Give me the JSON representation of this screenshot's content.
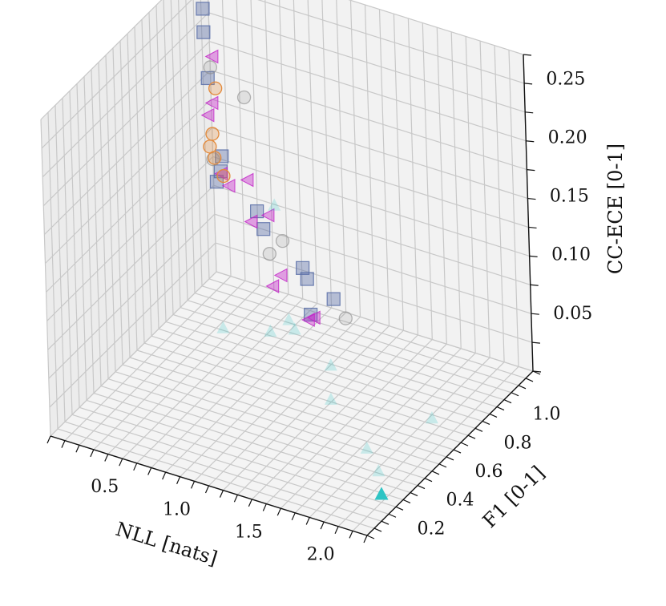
{
  "chart_data": {
    "type": "scatter",
    "projection": "3d",
    "title": "",
    "xlabel": "NLL [nats]",
    "ylabel": "F1 [0-1]",
    "zlabel": "CC-ECE [0-1]",
    "xlim": [
      0.0,
      2.2
    ],
    "ylim": [
      0.0,
      1.15
    ],
    "zlim": [
      0.0,
      0.27
    ],
    "xticks": [
      "0.5",
      "1.0",
      "1.5",
      "2.0"
    ],
    "yticks": [
      "0.2",
      "0.4",
      "0.6",
      "0.8",
      "1.0"
    ],
    "zticks": [
      "0.05",
      "0.10",
      "0.15",
      "0.20",
      "0.25"
    ],
    "grid": true,
    "legend": "none",
    "colors": {
      "slate": "#5b6fa8",
      "magenta": "#c21fc7",
      "cyan": "#2ec4c4",
      "orange": "#e38a3b",
      "gray": "#8c8c8c",
      "pane": "#f2f2f2",
      "grid": "#c8c8c8"
    },
    "series": [
      {
        "marker": "square",
        "color": "slate",
        "points": [
          [
            0.2,
            0.92,
            0.26
          ],
          [
            0.2,
            0.92,
            0.24
          ],
          [
            0.21,
            0.93,
            0.2
          ],
          [
            0.23,
            0.95,
            0.11
          ],
          [
            0.25,
            0.97,
            0.13
          ],
          [
            0.26,
            0.95,
            0.12
          ],
          [
            0.6,
            0.9,
            0.09
          ],
          [
            0.6,
            0.86,
            0.11
          ],
          [
            0.95,
            0.82,
            0.08
          ],
          [
            1.15,
            0.83,
            0.06
          ],
          [
            1.0,
            0.8,
            0.075
          ],
          [
            1.08,
            0.74,
            0.055
          ]
        ]
      },
      {
        "marker": "triangle-left",
        "color": "magenta",
        "points": [
          [
            0.25,
            0.93,
            0.22
          ],
          [
            0.24,
            0.93,
            0.18
          ],
          [
            0.22,
            0.92,
            0.17
          ],
          [
            0.28,
            0.94,
            0.12
          ],
          [
            0.32,
            0.95,
            0.11
          ],
          [
            0.45,
            0.95,
            0.12
          ],
          [
            0.62,
            0.92,
            0.1
          ],
          [
            0.5,
            0.92,
            0.09
          ],
          [
            0.75,
            0.87,
            0.06
          ],
          [
            0.7,
            0.86,
            0.05
          ],
          [
            1.15,
            0.7,
            0.06
          ],
          [
            1.1,
            0.71,
            0.055
          ]
        ]
      },
      {
        "marker": "circle",
        "color": "gray",
        "points": [
          [
            0.23,
            0.93,
            0.21
          ],
          [
            0.44,
            0.95,
            0.19
          ],
          [
            0.22,
            0.94,
            0.13
          ],
          [
            0.7,
            0.93,
            0.08
          ],
          [
            1.22,
            0.84,
            0.045
          ],
          [
            0.7,
            0.84,
            0.08
          ]
        ]
      },
      {
        "marker": "circle",
        "color": "orange",
        "points": [
          [
            0.24,
            0.95,
            0.19
          ],
          [
            0.2,
            0.94,
            0.14
          ],
          [
            0.21,
            0.95,
            0.15
          ],
          [
            0.22,
            0.95,
            0.13
          ],
          [
            0.3,
            0.93,
            0.12
          ]
        ]
      },
      {
        "marker": "triangle-up",
        "color": "cyan",
        "points": [
          [
            0.66,
            0.92,
            0.11
          ],
          [
            0.85,
            0.85,
            0.02
          ],
          [
            0.8,
            0.86,
            0.025
          ],
          [
            0.7,
            0.83,
            0.015
          ],
          [
            0.4,
            0.8,
            0.01
          ],
          [
            1.2,
            0.75,
            0.015
          ],
          [
            1.35,
            0.6,
            0.01
          ],
          [
            1.95,
            0.7,
            0.005
          ],
          [
            1.8,
            0.4,
            0.01
          ],
          [
            1.95,
            0.33,
            0.005
          ],
          [
            2.07,
            0.23,
            0.002
          ]
        ]
      }
    ],
    "highlight": {
      "marker": "triangle-up",
      "color": "cyan",
      "point": [
        2.07,
        0.23,
        0.002
      ]
    }
  }
}
